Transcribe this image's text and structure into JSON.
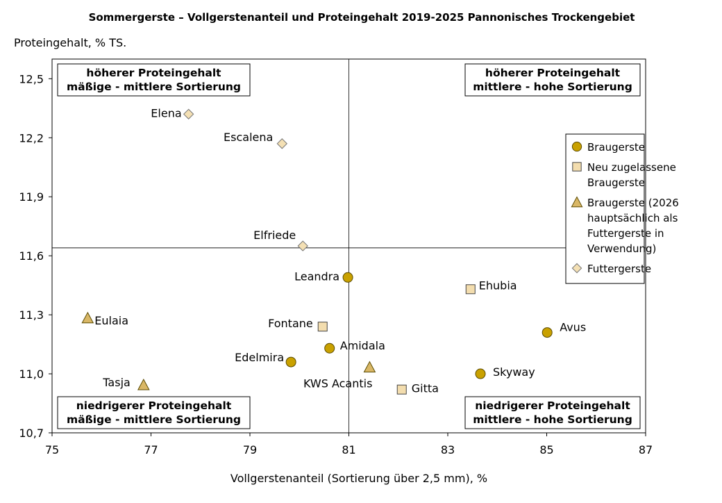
{
  "chart_data": {
    "type": "scatter",
    "title": "Sommergerste – Vollgerstenanteil und Proteingehalt 2019-2025 Pannonisches Trockengebiet",
    "xlabel": "Vollgerstenanteil (Sortierung über 2,5 mm), %",
    "ylabel": "Proteingehalt, % TS.",
    "xlim": [
      75,
      87
    ],
    "ylim": [
      10.7,
      12.6
    ],
    "xticks": [
      "75",
      "77",
      "79",
      "81",
      "83",
      "85",
      "87"
    ],
    "yticks": [
      "10,7",
      "11,0",
      "11,3",
      "11,6",
      "11,9",
      "12,2",
      "12,5"
    ],
    "grid": false,
    "reference_lines": {
      "x": 81.0,
      "y": 11.64
    },
    "quadrant_labels": {
      "top_left": [
        "höherer Proteingehalt",
        "mäßige - mittlere Sortierung"
      ],
      "top_right": [
        "höherer Proteingehalt",
        "mittlere - hohe Sortierung"
      ],
      "bottom_left": [
        "niedrigerer Proteingehalt",
        "mäßige - mittlere Sortierung"
      ],
      "bottom_right": [
        "niedrigerer Proteingehalt",
        "mittlere - hohe Sortierung"
      ]
    },
    "legend_position": "right",
    "series": [
      {
        "name": "Braugerste",
        "marker": "circle",
        "color": "#C9A100",
        "points": [
          {
            "label": "Leandra",
            "x": 80.98,
            "y": 11.49
          },
          {
            "label": "Avus",
            "x": 85.01,
            "y": 11.21
          },
          {
            "label": "Amidala",
            "x": 80.61,
            "y": 11.13
          },
          {
            "label": "Edelmira",
            "x": 79.83,
            "y": 11.06
          },
          {
            "label": "Skyway",
            "x": 83.66,
            "y": 11.0
          }
        ],
        "legend_lines": [
          "Braugerste"
        ]
      },
      {
        "name": "Neu zugelassene Braugerste",
        "marker": "square",
        "color": "#F3DDAE",
        "points": [
          {
            "label": "Ehubia",
            "x": 83.46,
            "y": 11.43
          },
          {
            "label": "Fontane",
            "x": 80.47,
            "y": 11.24
          },
          {
            "label": "Gitta",
            "x": 82.07,
            "y": 10.92
          }
        ],
        "legend_lines": [
          "Neu zugelassene",
          "Braugerste"
        ]
      },
      {
        "name": "Braugerste (2026 hauptsächlich als Futtergerste in Verwendung)",
        "marker": "triangle",
        "color": "#D9B766",
        "points": [
          {
            "label": "Eulaia",
            "x": 75.72,
            "y": 11.28
          },
          {
            "label": "KWS Acantis",
            "x": 81.42,
            "y": 11.03
          },
          {
            "label": "Tasja",
            "x": 76.85,
            "y": 10.94
          }
        ],
        "legend_lines": [
          "Braugerste (2026",
          "hauptsächlich als",
          "Futtergerste in",
          "Verwendung)"
        ]
      },
      {
        "name": "Futtergerste",
        "marker": "diamond",
        "color": "#F4E0B4",
        "points": [
          {
            "label": "Elena",
            "x": 77.76,
            "y": 12.32
          },
          {
            "label": "Escalena",
            "x": 79.65,
            "y": 12.17
          },
          {
            "label": "Elfriede",
            "x": 80.07,
            "y": 11.65
          }
        ],
        "legend_lines": [
          "Futtergerste"
        ]
      }
    ]
  }
}
